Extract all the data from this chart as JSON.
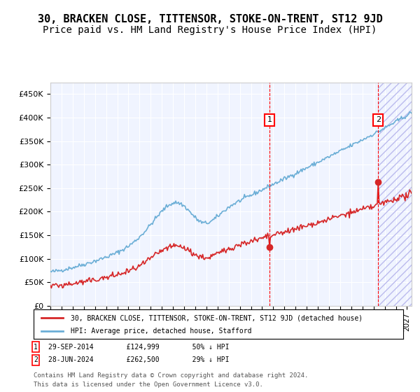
{
  "title": "30, BRACKEN CLOSE, TITTENSOR, STOKE-ON-TRENT, ST12 9JD",
  "subtitle": "Price paid vs. HM Land Registry's House Price Index (HPI)",
  "ylabel": "",
  "ylim": [
    0,
    475000
  ],
  "yticks": [
    0,
    50000,
    100000,
    150000,
    200000,
    250000,
    300000,
    350000,
    400000,
    450000
  ],
  "ytick_labels": [
    "£0",
    "£50K",
    "£100K",
    "£150K",
    "£200K",
    "£250K",
    "£300K",
    "£350K",
    "£400K",
    "£450K"
  ],
  "hpi_color": "#6baed6",
  "price_color": "#d62728",
  "marker1_date_idx": 237,
  "marker2_date_idx": 353,
  "marker1_label": "1",
  "marker2_label": "2",
  "marker1_price": 124999,
  "marker2_price": 262500,
  "legend_line1": "30, BRACKEN CLOSE, TITTENSOR, STOKE-ON-TRENT, ST12 9JD (detached house)",
  "legend_line2": "HPI: Average price, detached house, Stafford",
  "footnote1": "1    29-SEP-2014    £124,999    50% ↓ HPI",
  "footnote2": "2    28-JUN-2024    £262,500    29% ↓ HPI",
  "footnote3": "Contains HM Land Registry data © Crown copyright and database right 2024.",
  "footnote4": "This data is licensed under the Open Government Licence v3.0.",
  "background_color": "#f0f4ff",
  "hatch_color": "#ccccff",
  "title_fontsize": 11,
  "subtitle_fontsize": 10
}
